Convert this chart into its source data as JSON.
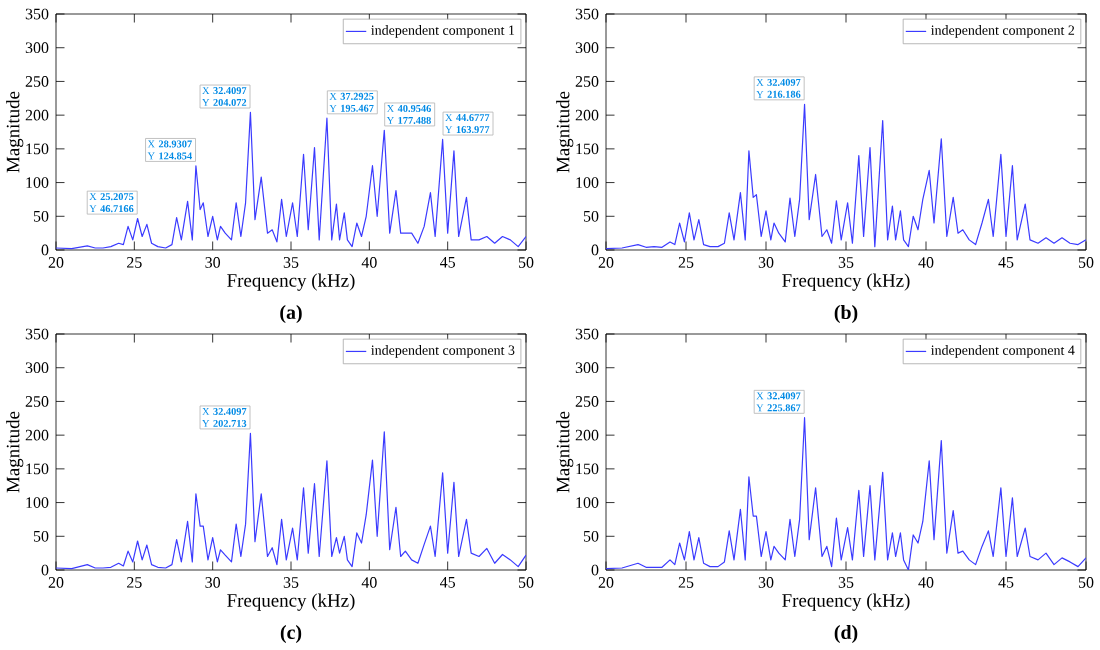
{
  "chart_data": [
    {
      "type": "line",
      "title": "(a)",
      "xlabel": "Frequency (kHz)",
      "ylabel": "Magnitude",
      "xlim": [
        20,
        50
      ],
      "ylim": [
        0,
        350
      ],
      "xticks": [
        20,
        25,
        30,
        35,
        40,
        45,
        50
      ],
      "yticks": [
        0,
        50,
        100,
        150,
        200,
        250,
        300,
        350
      ],
      "legend": "top right",
      "series": [
        {
          "name": "independent component 1",
          "color": "#3b3bff",
          "x": [
            20,
            21,
            22,
            22.5,
            23,
            23.5,
            24,
            24.3,
            24.6,
            24.9,
            25.2075,
            25.5,
            25.8,
            26.1,
            26.5,
            27,
            27.4,
            27.7,
            28,
            28.4,
            28.7,
            28.9307,
            29.2,
            29.4,
            29.7,
            30,
            30.3,
            30.5,
            30.8,
            31.2,
            31.5,
            31.8,
            32.1,
            32.4097,
            32.7,
            33.1,
            33.5,
            33.8,
            34.1,
            34.4,
            34.7,
            35.1,
            35.4,
            35.8,
            36.1,
            36.5,
            36.8,
            37.2925,
            37.6,
            37.9,
            38.1,
            38.4,
            38.6,
            38.9,
            39.2,
            39.5,
            39.8,
            40.2,
            40.5,
            40.9546,
            41.3,
            41.7,
            42,
            42.3,
            42.7,
            43.1,
            43.5,
            43.9,
            44.2,
            44.6777,
            45,
            45.4,
            45.7,
            46.2,
            46.5,
            47,
            47.5,
            48,
            48.5,
            49,
            49.5,
            50
          ],
          "values": [
            3,
            2,
            6,
            3,
            3,
            5,
            10,
            8,
            35,
            15,
            46.7166,
            20,
            38,
            10,
            5,
            3,
            8,
            48,
            15,
            72,
            15,
            124.854,
            60,
            70,
            20,
            50,
            15,
            35,
            25,
            15,
            70,
            20,
            70,
            204.072,
            45,
            108,
            25,
            30,
            12,
            75,
            20,
            70,
            20,
            142,
            30,
            152,
            15,
            195.467,
            15,
            68,
            15,
            55,
            15,
            5,
            40,
            20,
            50,
            125,
            50,
            177.488,
            25,
            88,
            25,
            25,
            25,
            10,
            35,
            85,
            20,
            163.977,
            25,
            147,
            20,
            78,
            15,
            15,
            20,
            10,
            20,
            15,
            5,
            20
          ]
        }
      ],
      "annotations": [
        {
          "text": "X **25.2075** Y **46.7166**",
          "x": 25.2075,
          "y": 46.7166
        },
        {
          "text": "X **28.9307** Y **124.854**",
          "x": 28.9307,
          "y": 124.854
        },
        {
          "text": "X **32.4097** Y **204.072**",
          "x": 32.4097,
          "y": 204.072
        },
        {
          "text": "X **37.2925** Y **195.467**",
          "x": 37.2925,
          "y": 195.467
        },
        {
          "text": "X **40.9546** Y **177.488**",
          "x": 40.9546,
          "y": 177.488
        },
        {
          "text": "X **44.6777** Y **163.977**",
          "x": 44.6777,
          "y": 163.977
        }
      ]
    },
    {
      "type": "line",
      "title": "(b)",
      "xlabel": "Frequency (kHz)",
      "ylabel": "Magnitude",
      "xlim": [
        20,
        50
      ],
      "ylim": [
        0,
        350
      ],
      "xticks": [
        20,
        25,
        30,
        35,
        40,
        45,
        50
      ],
      "yticks": [
        0,
        50,
        100,
        150,
        200,
        250,
        300,
        350
      ],
      "legend": "top right",
      "series": [
        {
          "name": "independent component 2",
          "color": "#3b3bff",
          "x": [
            20,
            21,
            22,
            22.5,
            23,
            23.5,
            24,
            24.3,
            24.6,
            24.9,
            25.2075,
            25.5,
            25.8,
            26.1,
            26.5,
            27,
            27.4,
            27.7,
            28,
            28.4,
            28.7,
            28.9307,
            29.2,
            29.4,
            29.7,
            30,
            30.3,
            30.5,
            30.8,
            31.2,
            31.5,
            31.8,
            32.1,
            32.4097,
            32.7,
            33.1,
            33.5,
            33.8,
            34.1,
            34.4,
            34.7,
            35.1,
            35.4,
            35.8,
            36.1,
            36.5,
            36.8,
            37.2925,
            37.6,
            37.9,
            38.1,
            38.4,
            38.6,
            38.9,
            39.2,
            39.5,
            39.8,
            40.2,
            40.5,
            40.9546,
            41.3,
            41.7,
            42,
            42.3,
            42.7,
            43.1,
            43.5,
            43.9,
            44.2,
            44.6777,
            45,
            45.4,
            45.7,
            46.2,
            46.5,
            47,
            47.5,
            48,
            48.5,
            49,
            49.5,
            50
          ],
          "values": [
            2,
            3,
            8,
            4,
            5,
            4,
            12,
            8,
            40,
            12,
            55,
            15,
            45,
            8,
            5,
            5,
            10,
            55,
            15,
            85,
            15,
            147,
            78,
            82,
            20,
            58,
            15,
            40,
            25,
            12,
            77,
            20,
            75,
            216.186,
            45,
            112,
            20,
            30,
            10,
            73,
            15,
            70,
            10,
            140,
            20,
            152,
            5,
            192,
            15,
            65,
            15,
            58,
            15,
            5,
            50,
            30,
            75,
            118,
            40,
            165,
            20,
            78,
            25,
            30,
            15,
            8,
            40,
            75,
            20,
            142,
            20,
            125,
            15,
            68,
            15,
            10,
            18,
            10,
            18,
            10,
            8,
            15
          ]
        }
      ],
      "annotations": [
        {
          "text": "X **32.4097** Y **216.186**",
          "x": 32.4097,
          "y": 216.186
        }
      ]
    },
    {
      "type": "line",
      "title": "(c)",
      "xlabel": "Frequency (kHz)",
      "ylabel": "Magnitude",
      "xlim": [
        20,
        50
      ],
      "ylim": [
        0,
        350
      ],
      "xticks": [
        20,
        25,
        30,
        35,
        40,
        45,
        50
      ],
      "yticks": [
        0,
        50,
        100,
        150,
        200,
        250,
        300,
        350
      ],
      "legend": "top right",
      "series": [
        {
          "name": "independent component 3",
          "color": "#3b3bff",
          "x": [
            20,
            21,
            22,
            22.5,
            23,
            23.5,
            24,
            24.3,
            24.6,
            24.9,
            25.2075,
            25.5,
            25.8,
            26.1,
            26.5,
            27,
            27.4,
            27.7,
            28,
            28.4,
            28.7,
            28.9307,
            29.2,
            29.4,
            29.7,
            30,
            30.3,
            30.5,
            30.8,
            31.2,
            31.5,
            31.8,
            32.1,
            32.4097,
            32.7,
            33.1,
            33.5,
            33.8,
            34.1,
            34.4,
            34.7,
            35.1,
            35.4,
            35.8,
            36.1,
            36.5,
            36.8,
            37.2925,
            37.6,
            37.9,
            38.1,
            38.4,
            38.6,
            38.9,
            39.2,
            39.5,
            39.8,
            40.2,
            40.5,
            40.9546,
            41.3,
            41.7,
            42,
            42.3,
            42.7,
            43.1,
            43.5,
            43.9,
            44.2,
            44.6777,
            45,
            45.4,
            45.7,
            46.2,
            46.5,
            47,
            47.5,
            48,
            48.5,
            49,
            49.5,
            50
          ],
          "values": [
            3,
            2,
            8,
            3,
            3,
            4,
            10,
            6,
            28,
            12,
            43,
            15,
            37,
            8,
            4,
            3,
            8,
            45,
            12,
            72,
            12,
            113,
            65,
            65,
            15,
            48,
            12,
            30,
            22,
            12,
            68,
            20,
            68,
            202.713,
            42,
            113,
            20,
            33,
            8,
            75,
            15,
            62,
            15,
            122,
            25,
            128,
            20,
            162,
            20,
            48,
            25,
            50,
            15,
            5,
            55,
            40,
            82,
            163,
            50,
            205,
            30,
            93,
            20,
            28,
            15,
            10,
            38,
            65,
            20,
            144,
            25,
            130,
            20,
            75,
            25,
            20,
            32,
            10,
            23,
            15,
            5,
            22
          ]
        }
      ],
      "annotations": [
        {
          "text": "X **32.4097** Y **202.713**",
          "x": 32.4097,
          "y": 202.713
        }
      ]
    },
    {
      "type": "line",
      "title": "(d)",
      "xlabel": "Frequency (kHz)",
      "ylabel": "Magnitude",
      "xlim": [
        20,
        50
      ],
      "ylim": [
        0,
        350
      ],
      "xticks": [
        20,
        25,
        30,
        35,
        40,
        45,
        50
      ],
      "yticks": [
        0,
        50,
        100,
        150,
        200,
        250,
        300,
        350
      ],
      "legend": "top right",
      "series": [
        {
          "name": "independent component 4",
          "color": "#3b3bff",
          "x": [
            20,
            21,
            22,
            22.5,
            23,
            23.5,
            24,
            24.3,
            24.6,
            24.9,
            25.2075,
            25.5,
            25.8,
            26.1,
            26.5,
            27,
            27.4,
            27.7,
            28,
            28.4,
            28.7,
            28.9307,
            29.2,
            29.4,
            29.7,
            30,
            30.3,
            30.5,
            30.8,
            31.2,
            31.5,
            31.8,
            32.1,
            32.4097,
            32.7,
            33.1,
            33.5,
            33.8,
            34.1,
            34.4,
            34.7,
            35.1,
            35.4,
            35.8,
            36.1,
            36.5,
            36.8,
            37.2925,
            37.6,
            37.9,
            38.1,
            38.4,
            38.6,
            38.9,
            39.2,
            39.5,
            39.8,
            40.2,
            40.5,
            40.9546,
            41.3,
            41.7,
            42,
            42.3,
            42.7,
            43.1,
            43.5,
            43.9,
            44.2,
            44.6777,
            45,
            45.4,
            45.7,
            46.2,
            46.5,
            47,
            47.5,
            48,
            48.5,
            49,
            49.5,
            50
          ],
          "values": [
            2,
            3,
            10,
            4,
            4,
            4,
            15,
            8,
            40,
            15,
            57,
            15,
            48,
            10,
            5,
            5,
            12,
            58,
            15,
            90,
            15,
            138,
            80,
            80,
            20,
            57,
            15,
            35,
            25,
            15,
            75,
            20,
            75,
            225.867,
            45,
            122,
            20,
            35,
            5,
            77,
            15,
            63,
            15,
            118,
            20,
            125,
            15,
            145,
            15,
            55,
            20,
            55,
            15,
            0,
            52,
            40,
            72,
            162,
            45,
            192,
            25,
            88,
            25,
            28,
            15,
            8,
            35,
            58,
            20,
            122,
            20,
            107,
            20,
            62,
            20,
            15,
            25,
            8,
            18,
            12,
            5,
            18
          ]
        }
      ],
      "annotations": [
        {
          "text": "X **32.4097** Y **225.867**",
          "x": 32.4097,
          "y": 225.867
        }
      ]
    }
  ]
}
